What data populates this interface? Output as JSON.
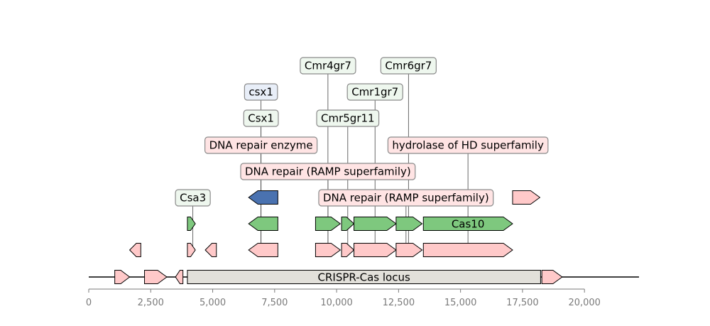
{
  "diagram": {
    "type": "genomic-feature-map",
    "axis": {
      "range": [
        0,
        22200
      ],
      "ticks": [
        {
          "value": 0,
          "label": "0"
        },
        {
          "value": 2500,
          "label": "2,500"
        },
        {
          "value": 5000,
          "label": "5,000"
        },
        {
          "value": 7500,
          "label": "7,500"
        },
        {
          "value": 10000,
          "label": "10,000"
        },
        {
          "value": 12500,
          "label": "12,500"
        },
        {
          "value": 15000,
          "label": "15,000"
        },
        {
          "value": 17500,
          "label": "17,500"
        },
        {
          "value": 20000,
          "label": "20,000"
        }
      ]
    },
    "colors": {
      "pink": "#ffc9c9",
      "green": "#7ec87e",
      "blue": "#4a72b0",
      "locus": "#e2e0da",
      "label_green": "#eef7ee",
      "label_blue": "#e8eef8",
      "label_pink": "#ffe4e4"
    },
    "features": [
      {
        "id": "f1",
        "start": 1050,
        "end": 1650,
        "strand": 1,
        "lane": 0,
        "color": "pink"
      },
      {
        "id": "f2",
        "start": 2250,
        "end": 3150,
        "strand": 1,
        "lane": 0,
        "color": "pink"
      },
      {
        "id": "f3",
        "start": 3500,
        "end": 3800,
        "strand": -1,
        "lane": 0,
        "color": "pink"
      },
      {
        "id": "locus",
        "start": 3980,
        "end": 18230,
        "strand": 0,
        "lane": 0,
        "color": "locus",
        "label": "CRISPR-Cas locus"
      },
      {
        "id": "f5",
        "start": 18280,
        "end": 19100,
        "strand": 1,
        "lane": 0,
        "color": "pink"
      },
      {
        "id": "p1",
        "start": 1650,
        "end": 2100,
        "strand": -1,
        "lane": 1,
        "color": "pink"
      },
      {
        "id": "p2",
        "start": 3980,
        "end": 4300,
        "strand": 1,
        "lane": 1,
        "color": "pink"
      },
      {
        "id": "p3",
        "start": 4700,
        "end": 5150,
        "strand": -1,
        "lane": 1,
        "color": "pink"
      },
      {
        "id": "p4",
        "start": 6450,
        "end": 7630,
        "strand": -1,
        "lane": 1,
        "color": "pink"
      },
      {
        "id": "p5",
        "start": 9150,
        "end": 10150,
        "strand": 1,
        "lane": 1,
        "color": "pink"
      },
      {
        "id": "p6",
        "start": 10200,
        "end": 10700,
        "strand": 1,
        "lane": 1,
        "color": "pink"
      },
      {
        "id": "p7",
        "start": 10700,
        "end": 12400,
        "strand": 1,
        "lane": 1,
        "color": "pink"
      },
      {
        "id": "p8",
        "start": 12400,
        "end": 13450,
        "strand": 1,
        "lane": 1,
        "color": "pink"
      },
      {
        "id": "p9",
        "start": 13500,
        "end": 17100,
        "strand": 1,
        "lane": 1,
        "color": "pink"
      },
      {
        "id": "g1",
        "start": 3980,
        "end": 4300,
        "strand": 1,
        "lane": 2,
        "color": "green"
      },
      {
        "id": "g2",
        "start": 6450,
        "end": 7630,
        "strand": -1,
        "lane": 2,
        "color": "green"
      },
      {
        "id": "g3",
        "start": 9150,
        "end": 10150,
        "strand": 1,
        "lane": 2,
        "color": "green"
      },
      {
        "id": "g4",
        "start": 10200,
        "end": 10700,
        "strand": 1,
        "lane": 2,
        "color": "green"
      },
      {
        "id": "g5",
        "start": 10700,
        "end": 12400,
        "strand": 1,
        "lane": 2,
        "color": "green"
      },
      {
        "id": "g6",
        "start": 12400,
        "end": 13450,
        "strand": 1,
        "lane": 2,
        "color": "green"
      },
      {
        "id": "g7",
        "start": 13500,
        "end": 17100,
        "strand": 1,
        "lane": 2,
        "color": "green",
        "label": "Cas10"
      },
      {
        "id": "b1",
        "start": 6450,
        "end": 7630,
        "strand": -1,
        "lane": 3,
        "color": "blue"
      },
      {
        "id": "r1",
        "start": 17100,
        "end": 18200,
        "strand": 1,
        "lane": 3,
        "color": "pink"
      }
    ],
    "callouts": [
      {
        "text": "Csa3",
        "x": 4200,
        "level": 0,
        "style": "label_green"
      },
      {
        "text": "DNA repair (RAMP superfamily)",
        "x": 12800,
        "level": 0,
        "style": "label_pink"
      },
      {
        "text": "DNA repair (RAMP superfamily)",
        "x": 9650,
        "level": 1,
        "style": "label_pink"
      },
      {
        "text": "DNA repair enzyme",
        "x": 6950,
        "level": 2,
        "style": "label_pink"
      },
      {
        "text": "hydrolase of HD superfamily",
        "x": 15300,
        "level": 2,
        "style": "label_pink"
      },
      {
        "text": "Csx1",
        "x": 6950,
        "level": 3,
        "style": "label_green"
      },
      {
        "text": "Cmr5gr11",
        "x": 10450,
        "level": 3,
        "style": "label_green"
      },
      {
        "text": "csx1",
        "x": 6950,
        "level": 4,
        "style": "label_blue"
      },
      {
        "text": "Cmr1gr7",
        "x": 11550,
        "level": 4,
        "style": "label_green"
      },
      {
        "text": "Cmr4gr7",
        "x": 9650,
        "level": 5,
        "style": "label_green"
      },
      {
        "text": "Cmr6gr7",
        "x": 12900,
        "level": 5,
        "style": "label_green"
      }
    ]
  }
}
